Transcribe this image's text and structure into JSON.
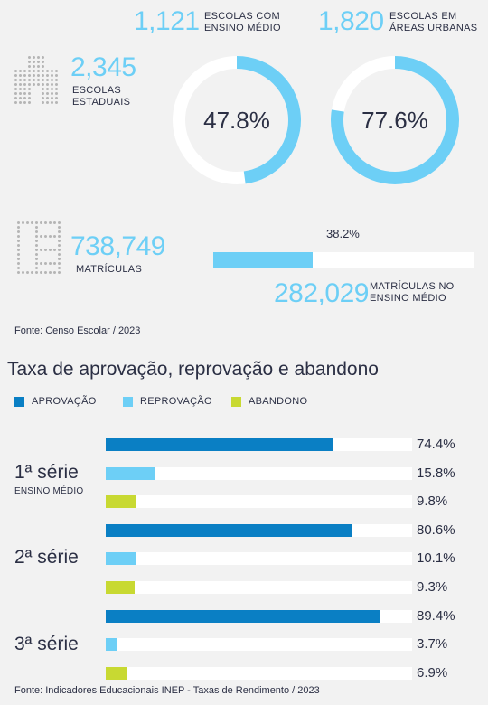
{
  "stats": {
    "ensino_medio": {
      "number": "1,121",
      "label_l1": "ESCOLAS COM",
      "label_l2": "ENSINO MÉDIO",
      "percent_label": "47.8%",
      "percent": 47.8
    },
    "urbanas": {
      "number": "1,820",
      "label_l1": "ESCOLAS EM",
      "label_l2": "ÁREAS URBANAS",
      "percent_label": "77.6%",
      "percent": 77.6
    },
    "estaduais": {
      "number": "2,345",
      "label_l1": "ESCOLAS",
      "label_l2": "ESTADUAIS"
    },
    "matriculas": {
      "number": "738,749",
      "label": "MATRÍCULAS"
    },
    "matriculas_em": {
      "number": "282,029",
      "label_l1": "MATRÍCULAS NO",
      "label_l2": "ENSINO MÉDIO",
      "percent_label": "38.2%",
      "percent": 38.2
    },
    "source": "Fonte: Censo Escolar / 2023"
  },
  "colors": {
    "aprovacao": "#0a7fc4",
    "reprovacao": "#6dcff6",
    "abandono": "#c8d932",
    "ring_track": "#ffffff",
    "accent": "#6dcff6"
  },
  "chart_data": {
    "type": "bar",
    "title": "Taxa de aprovação, reprovação e abandono",
    "categories": [
      "1ª série",
      "2ª série",
      "3ª série"
    ],
    "category_sublabels": [
      "ENSINO MÉDIO",
      "",
      ""
    ],
    "series": [
      {
        "name": "APROVAÇÃO",
        "values": [
          74.4,
          80.6,
          89.4
        ],
        "labels": [
          "74.4%",
          "80.6%",
          "89.4%"
        ]
      },
      {
        "name": "REPROVAÇÃO",
        "values": [
          15.8,
          10.1,
          3.7
        ],
        "labels": [
          "15.8%",
          "10.1%",
          "3.7%"
        ]
      },
      {
        "name": "ABANDONO",
        "values": [
          9.8,
          9.3,
          6.9
        ],
        "labels": [
          "9.8%",
          "9.3%",
          "6.9%"
        ]
      }
    ],
    "xlim": [
      0,
      100
    ],
    "orientation": "horizontal",
    "legend_position": "top-left",
    "source": "Fonte: Indicadores Educacionais INEP - Taxas de Rendimento / 2023"
  }
}
